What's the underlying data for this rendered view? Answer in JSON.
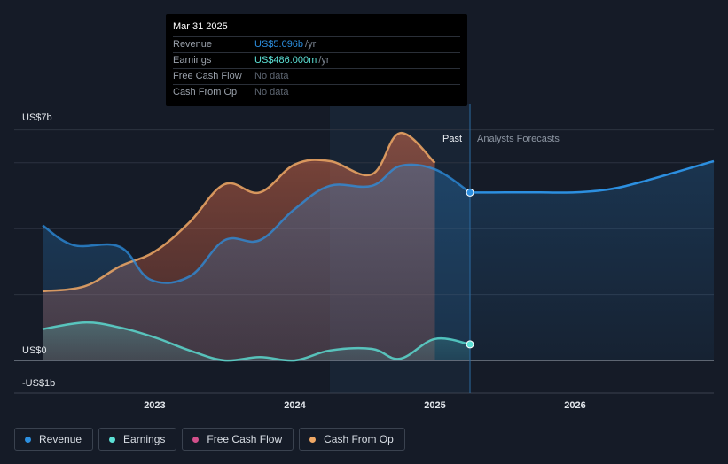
{
  "chart_data": {
    "type": "area",
    "y_ticks": [
      {
        "value": 7,
        "label": "US$7b"
      },
      {
        "value": 0,
        "label": "US$0"
      },
      {
        "value": -1,
        "label": "-US$1b"
      }
    ],
    "ylim": [
      -1,
      7
    ],
    "x_ticks": [
      {
        "value": 2023,
        "label": "2023"
      },
      {
        "value": 2024,
        "label": "2024"
      },
      {
        "value": 2025,
        "label": "2025"
      },
      {
        "value": 2026,
        "label": "2026"
      }
    ],
    "xlim": [
      2022.2,
      2026.99
    ],
    "past_label": "Past",
    "forecast_label": "Analysts Forecasts",
    "highlight_range": [
      2024.25,
      2025.25
    ],
    "past_end": 2025.25,
    "series": [
      {
        "name": "Revenue",
        "color": "#2c8fe0",
        "points": [
          [
            2022.2,
            4.1
          ],
          [
            2022.42,
            3.5
          ],
          [
            2022.75,
            3.45
          ],
          [
            2022.97,
            2.45
          ],
          [
            2023.25,
            2.55
          ],
          [
            2023.5,
            3.65
          ],
          [
            2023.75,
            3.65
          ],
          [
            2024.0,
            4.6
          ],
          [
            2024.25,
            5.3
          ],
          [
            2024.55,
            5.3
          ],
          [
            2024.75,
            5.9
          ],
          [
            2025.0,
            5.8
          ],
          [
            2025.25,
            5.1
          ]
        ],
        "forecast": [
          [
            2025.25,
            5.096
          ],
          [
            2025.5,
            5.1
          ],
          [
            2025.75,
            5.1
          ],
          [
            2026.0,
            5.1
          ],
          [
            2026.25,
            5.2
          ],
          [
            2026.5,
            5.45
          ],
          [
            2026.99,
            6.05
          ]
        ],
        "marker": [
          2025.25,
          5.096
        ]
      },
      {
        "name": "Earnings",
        "color": "#5ce1d6",
        "points": [
          [
            2022.2,
            0.95
          ],
          [
            2022.5,
            1.15
          ],
          [
            2022.75,
            1.0
          ],
          [
            2023.0,
            0.7
          ],
          [
            2023.25,
            0.3
          ],
          [
            2023.5,
            0.0
          ],
          [
            2023.75,
            0.1
          ],
          [
            2024.0,
            0.0
          ],
          [
            2024.25,
            0.3
          ],
          [
            2024.55,
            0.35
          ],
          [
            2024.75,
            0.05
          ],
          [
            2025.0,
            0.65
          ],
          [
            2025.25,
            0.486
          ]
        ],
        "forecast": [],
        "marker": [
          2025.25,
          0.486
        ]
      },
      {
        "name": "Free Cash Flow",
        "color": "#d24f8a",
        "points": [],
        "forecast": [],
        "marker": null
      },
      {
        "name": "Cash From Op",
        "color": "#f0a865",
        "points": [
          [
            2022.2,
            2.1
          ],
          [
            2022.5,
            2.25
          ],
          [
            2022.75,
            2.85
          ],
          [
            2023.0,
            3.3
          ],
          [
            2023.25,
            4.2
          ],
          [
            2023.5,
            5.35
          ],
          [
            2023.75,
            5.1
          ],
          [
            2024.0,
            5.95
          ],
          [
            2024.25,
            6.05
          ],
          [
            2024.55,
            5.65
          ],
          [
            2024.75,
            6.9
          ],
          [
            2025.0,
            6.0
          ]
        ],
        "forecast": [],
        "marker": null
      }
    ]
  },
  "tooltip": {
    "date": "Mar 31 2025",
    "rows": [
      {
        "label": "Revenue",
        "value": "US$5.096b",
        "unit": "/yr",
        "color": "#2c8fe0"
      },
      {
        "label": "Earnings",
        "value": "US$486.000m",
        "unit": "/yr",
        "color": "#5ce1d6"
      },
      {
        "label": "Free Cash Flow",
        "value": "No data",
        "unit": "",
        "color": ""
      },
      {
        "label": "Cash From Op",
        "value": "No data",
        "unit": "",
        "color": ""
      }
    ]
  },
  "legend": [
    {
      "label": "Revenue",
      "color": "#2c8fe0"
    },
    {
      "label": "Earnings",
      "color": "#5ce1d6"
    },
    {
      "label": "Free Cash Flow",
      "color": "#d24f8a"
    },
    {
      "label": "Cash From Op",
      "color": "#f0a865"
    }
  ]
}
